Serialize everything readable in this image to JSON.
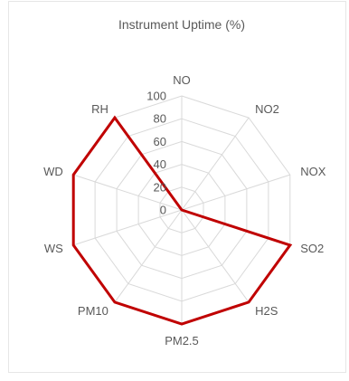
{
  "chart_data": {
    "type": "radar",
    "title": "Instrument Uptime (%)",
    "categories": [
      "NO",
      "NO2",
      "NOX",
      "SO2",
      "H2S",
      "PM2.5",
      "PM10",
      "WS",
      "WD",
      "RH"
    ],
    "series": [
      {
        "values": [
          0,
          0,
          0,
          100,
          100,
          100,
          100,
          100,
          100,
          100
        ],
        "color": "#c00000"
      }
    ],
    "ylim": [
      0,
      100
    ],
    "yticks": [
      0,
      20,
      40,
      60,
      80,
      100
    ],
    "grid": true,
    "grid_color": "#d9d9d9",
    "legend": "none"
  }
}
